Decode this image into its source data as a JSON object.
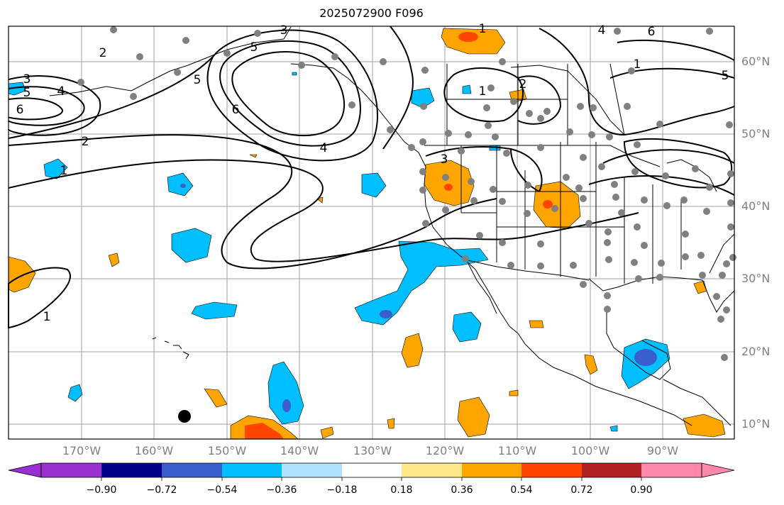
{
  "title": "2025072900 F096",
  "axes": {
    "lon_labels": [
      "170°W",
      "160°W",
      "150°W",
      "140°W",
      "130°W",
      "120°W",
      "110°W",
      "100°W",
      "90°W"
    ],
    "lat_labels": [
      "60°N",
      "50°N",
      "40°N",
      "30°N",
      "20°N",
      "10°N"
    ]
  },
  "colorbar": {
    "tick_labels": [
      "−0.90",
      "−0.72",
      "−0.54",
      "−0.36",
      "−0.18",
      "0.18",
      "0.36",
      "0.54",
      "0.72",
      "0.90"
    ],
    "colors": [
      "#9b30d0",
      "#00008b",
      "#3a5fcd",
      "#00bfff",
      "#b0e2ff",
      "#ffffff",
      "#ffe78a",
      "#ffa500",
      "#ff4500",
      "#b22222",
      "#ff88aa"
    ]
  },
  "contour_labels": [
    "3",
    "5",
    "4",
    "6",
    "5",
    "2",
    "2",
    "1",
    "6",
    "5",
    "4",
    "3",
    "3",
    "1",
    "1",
    "2",
    "1",
    "6",
    "5",
    "4",
    "1"
  ],
  "colors": {
    "positive_orange": "#ffa500",
    "positive_red": "#ff4500",
    "negative_blue": "#00bfff",
    "negative_dark": "#3a5fcd",
    "light_blue": "#b0e2ff",
    "grid": "#a0a0a0",
    "station_dot": "#808080"
  }
}
